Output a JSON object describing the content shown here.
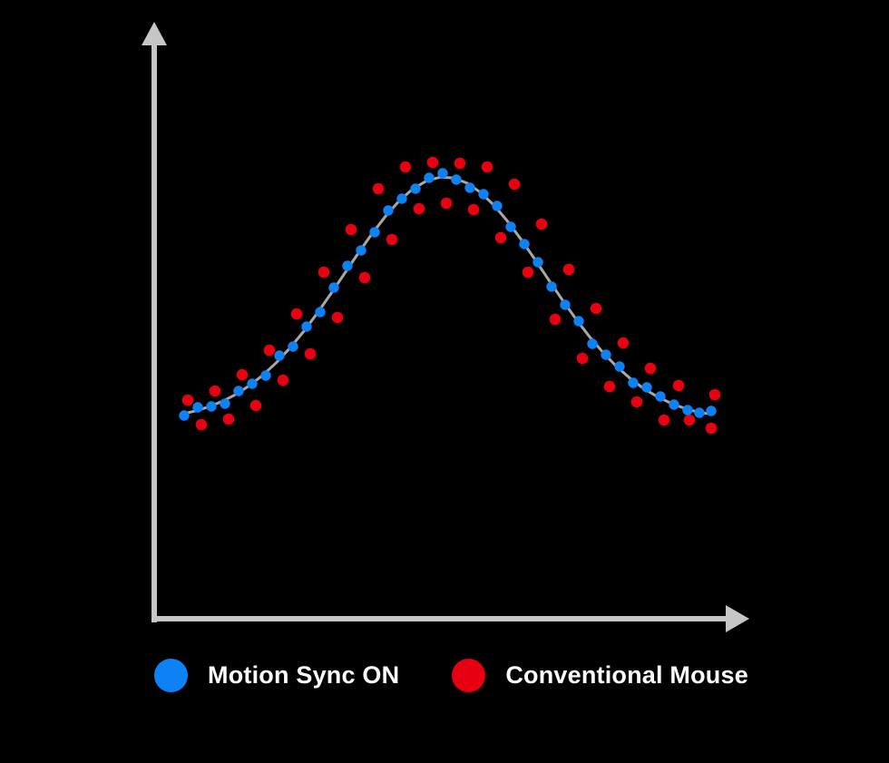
{
  "page": {
    "background": "#000000"
  },
  "legend": {
    "items": [
      {
        "label": "Motion Sync ON",
        "color": "#0d82f5"
      },
      {
        "label": "Conventional Mouse",
        "color": "#e60012"
      }
    ]
  },
  "chart_data": {
    "type": "scatter",
    "title": "",
    "xlabel": "",
    "ylabel": "",
    "grid": "off",
    "tick_labels": "none",
    "legend_position": "bottom",
    "axis_color": "#c6c6c6",
    "axis_thickness": 6,
    "axes": {
      "x": {
        "line": [
          167,
          682,
          801,
          682
        ],
        "arrow": [
          [
            826,
            682
          ],
          [
            800,
            667
          ],
          [
            800,
            697
          ]
        ]
      },
      "y": {
        "line": [
          170,
          686,
          170,
          48
        ],
        "arrow": [
          [
            170,
            24
          ],
          [
            156,
            50
          ],
          [
            184,
            50
          ]
        ]
      }
    },
    "trend_line": {
      "name": "smooth-response-curve",
      "color": "#a8a8a8",
      "width": 3,
      "points": [
        [
          200,
          456.6
        ],
        [
          215,
          453.1
        ],
        [
          230,
          448.4
        ],
        [
          245,
          442.4
        ],
        [
          260,
          434.7
        ],
        [
          275,
          425.0
        ],
        [
          290,
          413.3
        ],
        [
          305,
          399.3
        ],
        [
          320,
          383.2
        ],
        [
          335,
          365.0
        ],
        [
          350,
          344.9
        ],
        [
          365,
          323.4
        ],
        [
          380,
          301.2
        ],
        [
          395,
          279.0
        ],
        [
          410,
          257.8
        ],
        [
          425,
          238.3
        ],
        [
          440,
          221.5
        ],
        [
          455,
          208.3
        ],
        [
          470,
          199.4
        ],
        [
          485,
          195.3
        ],
        [
          500,
          196.1
        ],
        [
          515,
          201.9
        ],
        [
          530,
          212.3
        ],
        [
          545,
          226.7
        ],
        [
          560,
          244.5
        ],
        [
          575,
          264.7
        ],
        [
          590,
          286.4
        ],
        [
          605,
          308.7
        ],
        [
          620,
          330.7
        ],
        [
          635,
          351.8
        ],
        [
          650,
          371.3
        ],
        [
          665,
          388.8
        ],
        [
          680,
          404.3
        ],
        [
          695,
          417.4
        ],
        [
          710,
          428.5
        ],
        [
          725,
          437.4
        ],
        [
          740,
          444.6
        ],
        [
          755,
          450.2
        ],
        [
          770,
          454.4
        ],
        [
          785,
          456.5
        ]
      ]
    },
    "series": [
      {
        "name": "Motion Sync ON",
        "color": "#0d82f5",
        "radius": 5.7,
        "points": [
          [
            203,
            458
          ],
          [
            218,
            449
          ],
          [
            233,
            448
          ],
          [
            248,
            445
          ],
          [
            263,
            431
          ],
          [
            278,
            423
          ],
          [
            293,
            414
          ],
          [
            308,
            392
          ],
          [
            323,
            382
          ],
          [
            338,
            360
          ],
          [
            353,
            344
          ],
          [
            368,
            317
          ],
          [
            383,
            293
          ],
          [
            398,
            276
          ],
          [
            413,
            256
          ],
          [
            428,
            232
          ],
          [
            443,
            219
          ],
          [
            458,
            208
          ],
          [
            473,
            196
          ],
          [
            488,
            191
          ],
          [
            503,
            198
          ],
          [
            518,
            207
          ],
          [
            533,
            214
          ],
          [
            548,
            227
          ],
          [
            563,
            250
          ],
          [
            578,
            269
          ],
          [
            593,
            289
          ],
          [
            608,
            316
          ],
          [
            623,
            336
          ],
          [
            638,
            354
          ],
          [
            653,
            379
          ],
          [
            668,
            391
          ],
          [
            683,
            404
          ],
          [
            698,
            422
          ],
          [
            713,
            427
          ],
          [
            728,
            437
          ],
          [
            743,
            446
          ],
          [
            758,
            452
          ],
          [
            771,
            455
          ],
          [
            784,
            453
          ]
        ]
      },
      {
        "name": "Conventional Mouse",
        "color": "#e60012",
        "radius": 6.3,
        "points": [
          [
            207,
            441
          ],
          [
            222,
            468
          ],
          [
            237,
            431
          ],
          [
            252,
            462
          ],
          [
            267,
            413
          ],
          [
            282,
            447
          ],
          [
            297,
            386
          ],
          [
            312,
            419
          ],
          [
            327,
            346
          ],
          [
            342,
            390
          ],
          [
            357,
            300
          ],
          [
            372,
            350
          ],
          [
            387,
            253
          ],
          [
            402,
            306
          ],
          [
            417,
            208
          ],
          [
            432,
            264
          ],
          [
            447,
            184
          ],
          [
            462,
            230
          ],
          [
            477,
            179
          ],
          [
            492,
            224
          ],
          [
            507,
            180
          ],
          [
            522,
            231
          ],
          [
            537,
            184
          ],
          [
            552,
            262
          ],
          [
            567,
            203
          ],
          [
            582,
            300
          ],
          [
            597,
            247
          ],
          [
            612,
            352
          ],
          [
            627,
            297
          ],
          [
            642,
            395
          ],
          [
            657,
            340
          ],
          [
            672,
            426
          ],
          [
            687,
            378
          ],
          [
            702,
            443
          ],
          [
            717,
            406
          ],
          [
            732,
            463
          ],
          [
            748,
            425
          ],
          [
            760,
            463
          ],
          [
            788,
            435
          ],
          [
            784,
            472
          ]
        ]
      }
    ]
  }
}
